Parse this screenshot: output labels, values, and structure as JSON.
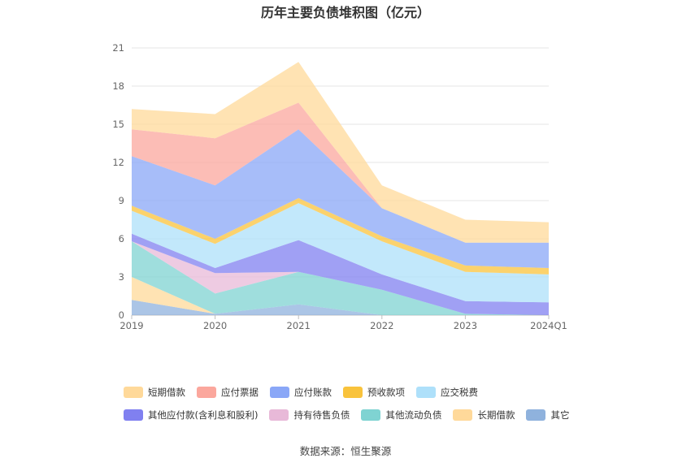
{
  "title": "历年主要负债堆积图（亿元）",
  "source": "数据来源：恒生聚源",
  "chart_data": {
    "type": "area",
    "stacked": true,
    "categories": [
      "2019",
      "2020",
      "2021",
      "2022",
      "2023",
      "2024Q1"
    ],
    "ylim": [
      0,
      21
    ],
    "yticks": [
      0,
      3,
      6,
      9,
      12,
      15,
      18,
      21
    ],
    "grid": true,
    "legend_position": "bottom",
    "series": [
      {
        "name": "其它",
        "color": "#8fb2dd",
        "values": [
          1.2,
          0.1,
          0.85,
          0.0,
          0.0,
          0.0
        ]
      },
      {
        "name": "长期借款",
        "color": "#ffd99a",
        "values": [
          1.8,
          0.0,
          0.0,
          0.0,
          0.0,
          0.0
        ]
      },
      {
        "name": "其他流动负债",
        "color": "#7fd3d2",
        "values": [
          2.8,
          1.6,
          2.55,
          2.0,
          0.1,
          0.0
        ]
      },
      {
        "name": "持有待售负债",
        "color": "#e8b9d8",
        "values": [
          0.0,
          1.6,
          0.0,
          0.0,
          0.0,
          0.0
        ]
      },
      {
        "name": "其他应付款(含利息和股利)",
        "color": "#8080f0",
        "values": [
          0.6,
          0.4,
          2.5,
          1.2,
          1.0,
          1.0
        ]
      },
      {
        "name": "应交税费",
        "color": "#aee0fa",
        "values": [
          1.8,
          1.9,
          2.9,
          2.6,
          2.3,
          2.2
        ]
      },
      {
        "name": "预收款项",
        "color": "#f9c33c",
        "values": [
          0.4,
          0.4,
          0.4,
          0.4,
          0.5,
          0.5
        ]
      },
      {
        "name": "应付账款",
        "color": "#8aa7f7",
        "values": [
          3.9,
          4.2,
          5.4,
          2.2,
          1.8,
          2.0
        ]
      },
      {
        "name": "应付票据",
        "color": "#fba79d",
        "values": [
          2.1,
          3.7,
          2.1,
          0.0,
          0.0,
          0.0
        ]
      },
      {
        "name": "短期借款",
        "color": "#ffd99a",
        "values": [
          1.6,
          1.9,
          3.2,
          1.8,
          1.8,
          1.6
        ]
      }
    ]
  },
  "legend": {
    "row1": [
      {
        "label": "短期借款",
        "color": "#ffd99a"
      },
      {
        "label": "应付票据",
        "color": "#fba79d"
      },
      {
        "label": "应付账款",
        "color": "#8aa7f7"
      },
      {
        "label": "预收款项",
        "color": "#f9c33c"
      },
      {
        "label": "应交税费",
        "color": "#aee0fa"
      }
    ],
    "row2": [
      {
        "label": "其他应付款(含利息和股利)",
        "color": "#8080f0"
      },
      {
        "label": "持有待售负债",
        "color": "#e8b9d8"
      },
      {
        "label": "其他流动负债",
        "color": "#7fd3d2"
      },
      {
        "label": "长期借款",
        "color": "#ffd99a"
      },
      {
        "label": "其它",
        "color": "#8fb2dd"
      }
    ]
  }
}
